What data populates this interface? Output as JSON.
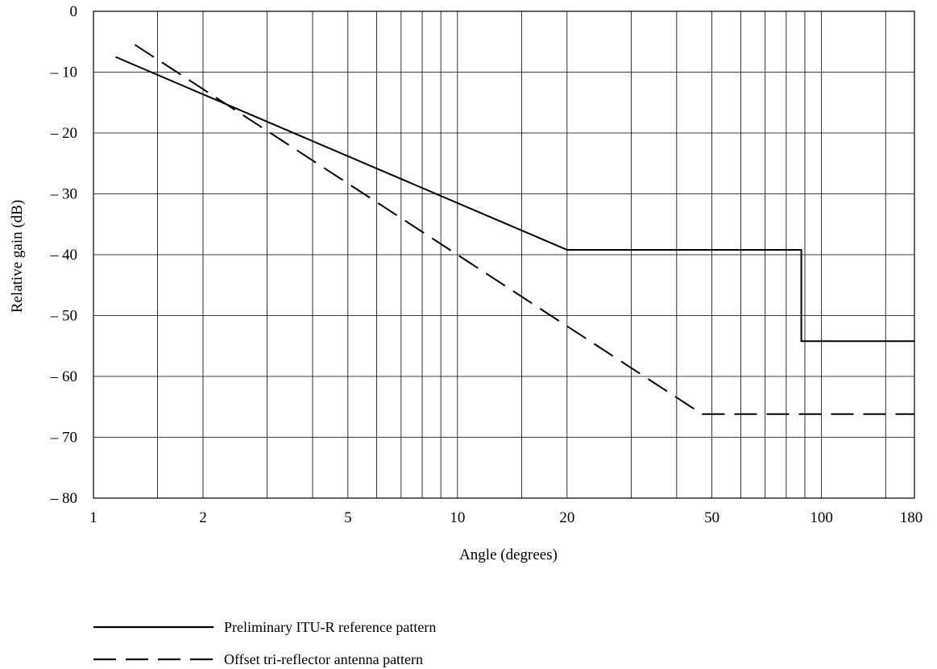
{
  "chart_data": {
    "type": "line",
    "title": "",
    "xlabel": "Angle (degrees)",
    "ylabel": "Relative gain (dB)",
    "x_scale": "log",
    "xlim": [
      1,
      180
    ],
    "ylim": [
      -80,
      0
    ],
    "x_tick_values": [
      1,
      2,
      5,
      10,
      20,
      50,
      100,
      180
    ],
    "x_tick_labels": [
      "1",
      "2",
      "5",
      "10",
      "20",
      "50",
      "100",
      "180"
    ],
    "x_minor_grid": [
      1.5,
      3,
      4,
      6,
      7,
      8,
      9,
      15,
      30,
      40,
      60,
      70,
      80,
      90,
      150
    ],
    "y_tick_values": [
      0,
      -10,
      -20,
      -30,
      -40,
      -50,
      -60,
      -70,
      -80
    ],
    "y_tick_labels": [
      "0",
      "– 10",
      "– 20",
      "– 30",
      "– 40",
      "– 50",
      "– 60",
      "– 70",
      "– 80"
    ],
    "grid": true,
    "legend_position": "bottom-left, below chart",
    "series": [
      {
        "name": "Preliminary ITU-R reference pattern",
        "line_style": "solid",
        "color": "#000000",
        "x": [
          1.15,
          20,
          88,
          88,
          180
        ],
        "y": [
          -7.5,
          -39.2,
          -39.2,
          -54.2,
          -54.2
        ]
      },
      {
        "name": "Offset tri-reflector antenna pattern",
        "line_style": "dashed",
        "color": "#000000",
        "x": [
          1.3,
          47,
          180
        ],
        "y": [
          -5.5,
          -66.2,
          -66.2
        ]
      }
    ]
  }
}
